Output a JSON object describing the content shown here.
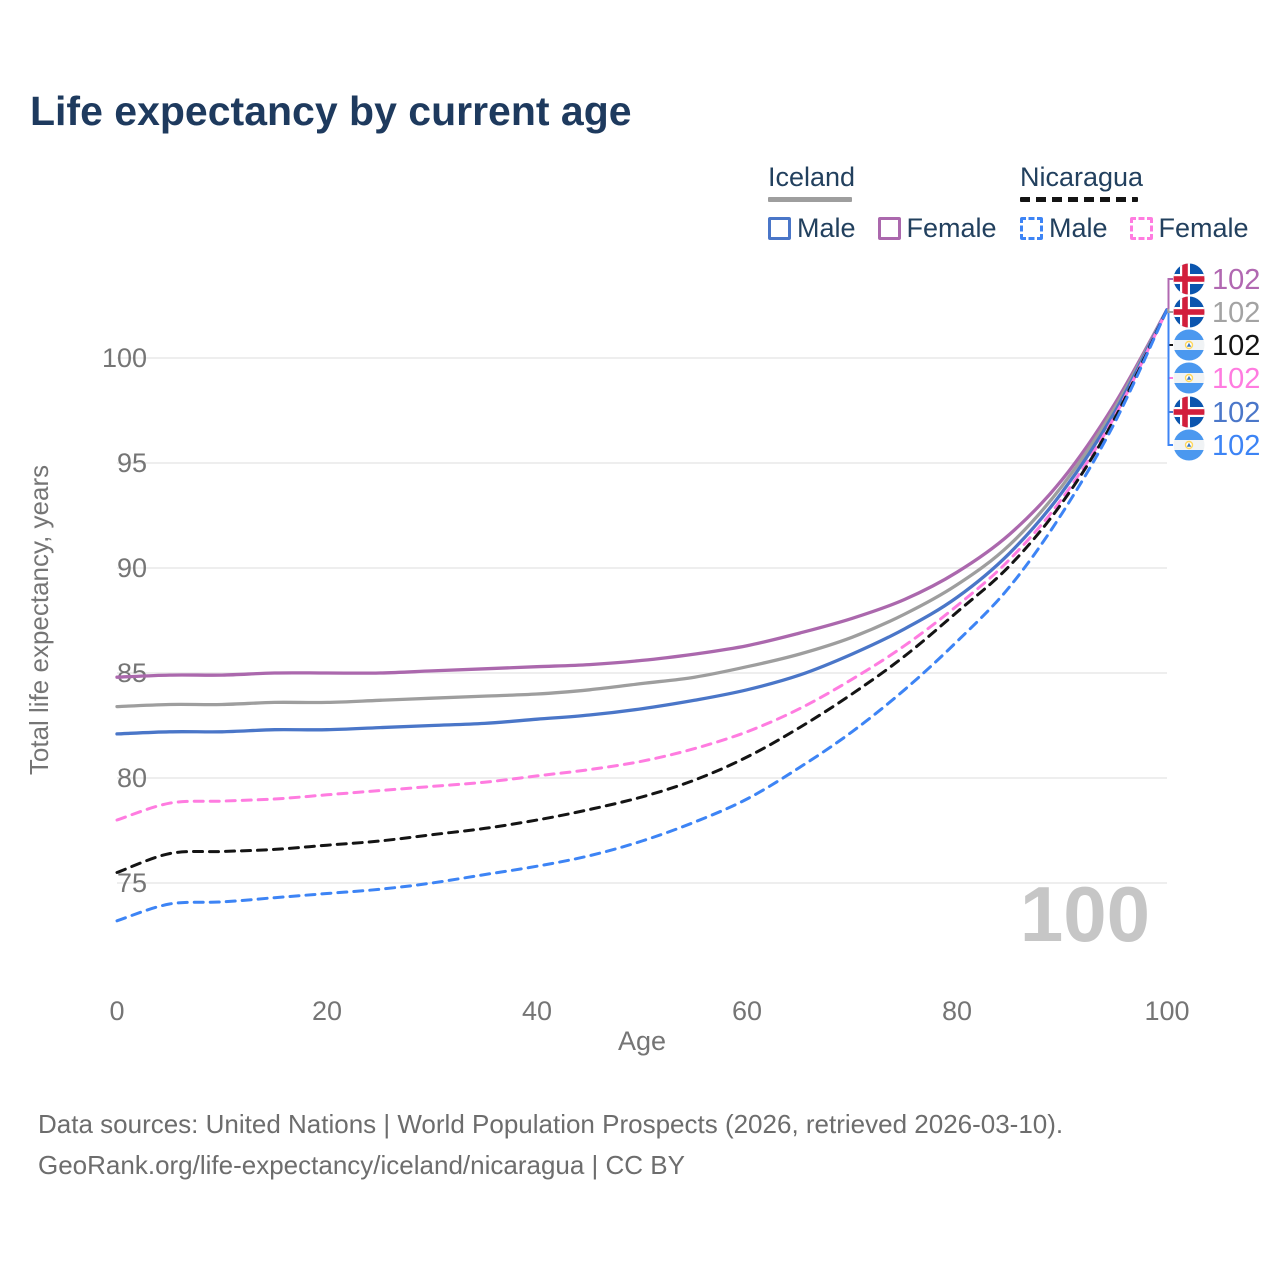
{
  "title": "Life expectancy by current age",
  "legend": {
    "groups": [
      {
        "name": "Iceland",
        "underline_style": "solid",
        "underline_color": "#9e9e9e",
        "items": [
          {
            "label": "Male",
            "color": "#4a76c8",
            "dash": false
          },
          {
            "label": "Female",
            "color": "#ab68ad",
            "dash": false
          }
        ]
      },
      {
        "name": "Nicaragua",
        "underline_style": "dashed",
        "underline_color": "#141414",
        "items": [
          {
            "label": "Male",
            "color": "#3d84f5",
            "dash": true
          },
          {
            "label": "Female",
            "color": "#ff7ce0",
            "dash": true
          }
        ]
      }
    ]
  },
  "chart_data": {
    "type": "line",
    "title": "Life expectancy by current age",
    "xlabel": "Age",
    "ylabel": "Total life expectancy, years",
    "xlim": [
      0,
      100
    ],
    "ylim": [
      72.5,
      102.5
    ],
    "x_ticks": [
      0,
      20,
      40,
      60,
      80,
      100
    ],
    "y_ticks": [
      75,
      80,
      85,
      90,
      95,
      100
    ],
    "grid": "horizontal",
    "age_counter_watermark": "100",
    "watermark_color": "#c6c6c6",
    "grid_color": "#e8e8e8",
    "axis_text_color": "#757575",
    "x": [
      0,
      5,
      10,
      15,
      20,
      25,
      30,
      35,
      40,
      45,
      50,
      55,
      60,
      65,
      70,
      75,
      80,
      85,
      90,
      95,
      100
    ],
    "series": [
      {
        "name": "Iceland Female",
        "color": "#ab68ad",
        "dash": "solid",
        "values": [
          84.8,
          84.9,
          84.9,
          85.0,
          85.0,
          85.0,
          85.1,
          85.2,
          85.3,
          85.4,
          85.6,
          85.9,
          86.3,
          86.9,
          87.6,
          88.5,
          89.8,
          91.6,
          94.2,
          97.8,
          102.3
        ]
      },
      {
        "name": "Iceland Both sexes",
        "color": "#9e9e9e",
        "dash": "solid",
        "values": [
          83.4,
          83.5,
          83.5,
          83.6,
          83.6,
          83.7,
          83.8,
          83.9,
          84.0,
          84.2,
          84.5,
          84.8,
          85.3,
          85.9,
          86.7,
          87.8,
          89.2,
          91.1,
          93.9,
          97.6,
          102.3
        ]
      },
      {
        "name": "Iceland Male",
        "color": "#4a76c8",
        "dash": "solid",
        "values": [
          82.1,
          82.2,
          82.2,
          82.3,
          82.3,
          82.4,
          82.5,
          82.6,
          82.8,
          83.0,
          83.3,
          83.7,
          84.2,
          84.9,
          85.9,
          87.1,
          88.6,
          90.7,
          93.6,
          97.4,
          102.3
        ]
      },
      {
        "name": "Nicaragua Female",
        "color": "#ff7ce0",
        "dash": "dashed",
        "values": [
          78.0,
          78.8,
          78.9,
          79.0,
          79.2,
          79.4,
          79.6,
          79.8,
          80.1,
          80.4,
          80.8,
          81.4,
          82.2,
          83.3,
          84.7,
          86.3,
          88.2,
          90.4,
          93.3,
          97.2,
          102.3
        ]
      },
      {
        "name": "Nicaragua Both sexes",
        "color": "#141414",
        "dash": "dashed",
        "values": [
          75.5,
          76.4,
          76.5,
          76.6,
          76.8,
          77.0,
          77.3,
          77.6,
          78.0,
          78.5,
          79.1,
          79.9,
          81.0,
          82.4,
          84.0,
          85.8,
          87.9,
          90.1,
          93.1,
          97.1,
          102.3
        ]
      },
      {
        "name": "Nicaragua Male",
        "color": "#3d84f5",
        "dash": "dashed",
        "values": [
          73.2,
          74.0,
          74.1,
          74.3,
          74.5,
          74.7,
          75.0,
          75.4,
          75.8,
          76.3,
          77.0,
          77.9,
          79.0,
          80.5,
          82.2,
          84.2,
          86.5,
          89.1,
          92.6,
          96.9,
          102.3
        ]
      }
    ],
    "end_labels": [
      {
        "series": "Iceland Female",
        "flag": "iceland",
        "value": "102",
        "color": "#b168b1"
      },
      {
        "series": "Iceland Both sexes",
        "flag": "iceland",
        "value": "102",
        "color": "#a3a3a3"
      },
      {
        "series": "Nicaragua Both sexes",
        "flag": "nicaragua",
        "value": "102",
        "color": "#141414"
      },
      {
        "series": "Nicaragua Female",
        "flag": "nicaragua",
        "value": "102",
        "color": "#ff7ce0"
      },
      {
        "series": "Iceland Male",
        "flag": "iceland",
        "value": "102",
        "color": "#4b77c9"
      },
      {
        "series": "Nicaragua Male",
        "flag": "nicaragua",
        "value": "102",
        "color": "#3d84f5"
      }
    ]
  },
  "footer": {
    "line1": "Data sources: United Nations | World Population Prospects (2026, retrieved 2026-03-10).",
    "line2": "GeoRank.org/life-expectancy/iceland/nicaragua | CC BY"
  }
}
